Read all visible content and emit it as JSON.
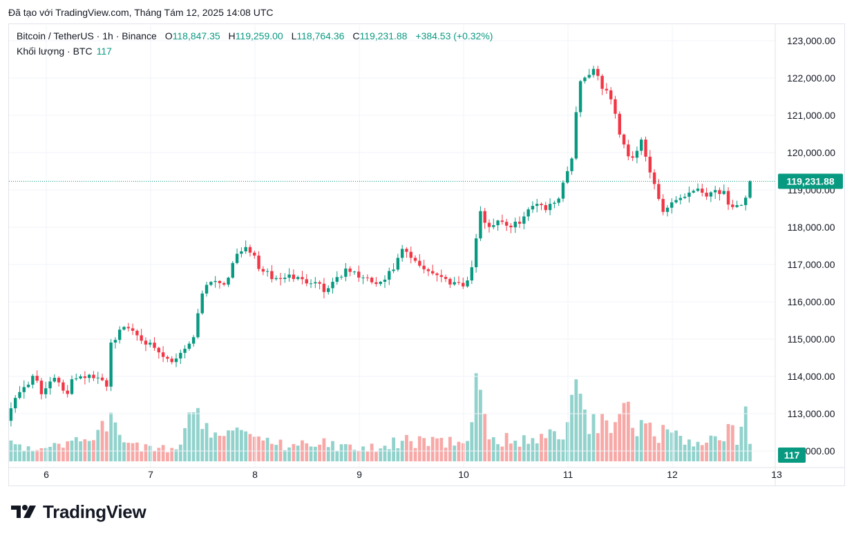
{
  "header": {
    "created_with": "Đã tạo với TradingView.com, Tháng Tám 12, 2025 14:08 UTC"
  },
  "legend": {
    "symbol": "Bitcoin / TetherUS · 1h · Binance",
    "open_label": "O",
    "open_value": "118,847.35",
    "high_label": "H",
    "high_value": "119,259.00",
    "low_label": "L",
    "low_value": "118,764.36",
    "close_label": "C",
    "close_value": "119,231.88",
    "change": "+384.53 (+0.32%)",
    "volume_label": "Khối lượng · BTC",
    "volume_value": "117"
  },
  "colors": {
    "up": "#089981",
    "down": "#f23645",
    "up_volume": "#92d2cc",
    "down_volume": "#f7a9a7",
    "grid": "#f0f3fa",
    "last_price_tag": "#089981",
    "volume_tag": "#089981"
  },
  "logo": {
    "icon": "tradingview-logo-icon",
    "text": "TradingView"
  },
  "chart_data": {
    "type": "candlestick",
    "title": "Bitcoin / TetherUS · 1h · Binance",
    "timeframe": "1h",
    "y_ticks": [
      123000,
      122000,
      121000,
      120000,
      119000,
      118000,
      117000,
      116000,
      115000,
      114000,
      113000,
      112000
    ],
    "y_tick_labels": [
      "123,000.00",
      "122,000.00",
      "121,000.00",
      "120,000.00",
      "119,000.00",
      "118,000.00",
      "117,000.00",
      "116,000.00",
      "115,000.00",
      "114,000.00",
      "113,000.00",
      "112,000.00"
    ],
    "ylim": [
      111700,
      123500
    ],
    "x_ticks": [
      6,
      7,
      8,
      9,
      10,
      11,
      12,
      13
    ],
    "x_tick_labels": [
      "6",
      "7",
      "8",
      "9",
      "10",
      "11",
      "12",
      "13"
    ],
    "last_price": 119231.88,
    "last_price_label": "119,231.88",
    "volume_last_label": "117",
    "grid": true,
    "anchors": [
      [
        5.62,
        112900
      ],
      [
        5.75,
        113650
      ],
      [
        5.9,
        114000
      ],
      [
        5.95,
        113500
      ],
      [
        6.05,
        114000
      ],
      [
        6.2,
        113500
      ],
      [
        6.22,
        113950
      ],
      [
        6.35,
        114050
      ],
      [
        6.5,
        113900
      ],
      [
        6.58,
        113800
      ],
      [
        6.62,
        114900
      ],
      [
        6.75,
        115350
      ],
      [
        6.85,
        115200
      ],
      [
        6.95,
        114950
      ],
      [
        7.05,
        114650
      ],
      [
        7.2,
        114350
      ],
      [
        7.3,
        114700
      ],
      [
        7.42,
        115050
      ],
      [
        7.48,
        116250
      ],
      [
        7.58,
        116600
      ],
      [
        7.7,
        116500
      ],
      [
        7.78,
        116900
      ],
      [
        7.85,
        117450
      ],
      [
        7.98,
        117300
      ],
      [
        8.05,
        116850
      ],
      [
        8.2,
        116600
      ],
      [
        8.35,
        116700
      ],
      [
        8.45,
        116550
      ],
      [
        8.6,
        116600
      ],
      [
        8.65,
        116250
      ],
      [
        8.8,
        116700
      ],
      [
        8.9,
        116850
      ],
      [
        9.05,
        116600
      ],
      [
        9.2,
        116450
      ],
      [
        9.32,
        116850
      ],
      [
        9.42,
        117400
      ],
      [
        9.55,
        117000
      ],
      [
        9.7,
        116800
      ],
      [
        9.85,
        116550
      ],
      [
        10.0,
        116500
      ],
      [
        10.05,
        116550
      ],
      [
        10.1,
        117250
      ],
      [
        10.15,
        118400
      ],
      [
        10.25,
        118000
      ],
      [
        10.35,
        118250
      ],
      [
        10.45,
        117950
      ],
      [
        10.6,
        118350
      ],
      [
        10.7,
        118700
      ],
      [
        10.8,
        118500
      ],
      [
        10.9,
        118750
      ],
      [
        10.95,
        119150
      ],
      [
        11.05,
        120000
      ],
      [
        11.1,
        121950
      ],
      [
        11.15,
        121950
      ],
      [
        11.25,
        122300
      ],
      [
        11.3,
        121850
      ],
      [
        11.4,
        121550
      ],
      [
        11.5,
        120500
      ],
      [
        11.6,
        119800
      ],
      [
        11.7,
        120300
      ],
      [
        11.78,
        119500
      ],
      [
        11.85,
        119000
      ],
      [
        11.9,
        118400
      ],
      [
        12.0,
        118700
      ],
      [
        12.12,
        118850
      ],
      [
        12.2,
        119050
      ],
      [
        12.32,
        118900
      ],
      [
        12.4,
        119000
      ],
      [
        12.5,
        118900
      ],
      [
        12.55,
        118400
      ],
      [
        12.65,
        118600
      ],
      [
        12.72,
        118850
      ],
      [
        12.75,
        119231.88
      ]
    ],
    "volume_anchors": [
      [
        5.62,
        900
      ],
      [
        6.0,
        800
      ],
      [
        6.5,
        1400
      ],
      [
        6.58,
        2700
      ],
      [
        6.7,
        1200
      ],
      [
        7.0,
        650
      ],
      [
        7.3,
        900
      ],
      [
        7.42,
        3700
      ],
      [
        7.5,
        1700
      ],
      [
        7.9,
        1500
      ],
      [
        8.2,
        1000
      ],
      [
        8.6,
        1100
      ],
      [
        9.0,
        700
      ],
      [
        9.2,
        900
      ],
      [
        9.4,
        1200
      ],
      [
        9.8,
        1000
      ],
      [
        10.05,
        1400
      ],
      [
        10.12,
        5000
      ],
      [
        10.25,
        1200
      ],
      [
        10.6,
        1300
      ],
      [
        10.9,
        1400
      ],
      [
        11.0,
        1800
      ],
      [
        11.1,
        6000
      ],
      [
        11.2,
        2300
      ],
      [
        11.45,
        2100
      ],
      [
        11.55,
        2800
      ],
      [
        11.75,
        1800
      ],
      [
        12.0,
        1400
      ],
      [
        12.3,
        900
      ],
      [
        12.55,
        1700
      ],
      [
        12.65,
        1200
      ],
      [
        12.72,
        2900
      ],
      [
        12.76,
        240
      ]
    ],
    "volume_max": 6000
  }
}
